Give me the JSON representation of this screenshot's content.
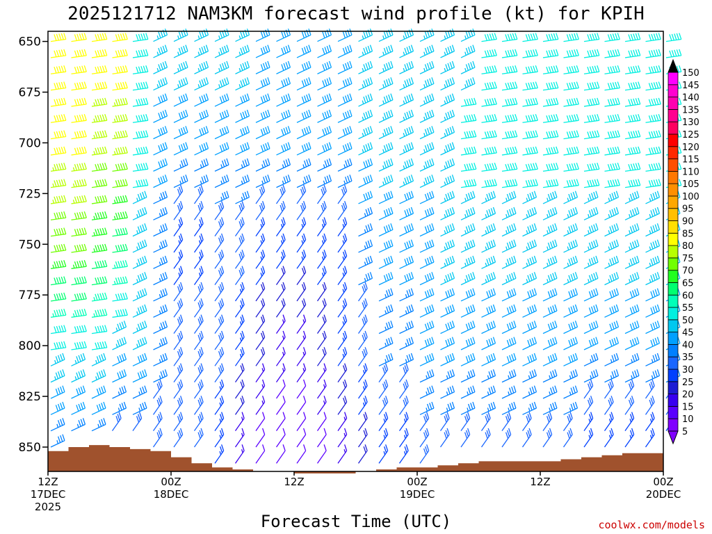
{
  "chart_data": {
    "type": "wind-barb-profile",
    "title": "2025121712 NAM3KM forecast wind profile (kt) for KPIH",
    "xlabel": "Forecast Time (UTC)",
    "ylabel": "",
    "y_ticks": [
      "650",
      "675",
      "700",
      "725",
      "750",
      "775",
      "800",
      "825",
      "850"
    ],
    "y_values": [
      650,
      675,
      700,
      725,
      750,
      775,
      800,
      825,
      850
    ],
    "ylim": [
      645,
      862
    ],
    "x_ticks": [
      {
        "hour": 0,
        "line1": "12Z",
        "line2": "17DEC",
        "line3": "2025"
      },
      {
        "hour": 12,
        "line1": "00Z",
        "line2": "18DEC",
        "line3": ""
      },
      {
        "hour": 24,
        "line1": "12Z",
        "line2": "",
        "line3": ""
      },
      {
        "hour": 36,
        "line1": "00Z",
        "line2": "19DEC",
        "line3": ""
      },
      {
        "hour": 48,
        "line1": "12Z",
        "line2": "",
        "line3": ""
      },
      {
        "hour": 60,
        "line1": "00Z",
        "line2": "20DEC",
        "line3": ""
      }
    ],
    "xlim": [
      0,
      60
    ],
    "colorbar": {
      "levels": [
        5,
        10,
        15,
        20,
        25,
        30,
        35,
        40,
        45,
        50,
        55,
        60,
        65,
        70,
        75,
        80,
        85,
        90,
        95,
        100,
        105,
        110,
        115,
        120,
        125,
        130,
        135,
        140,
        145,
        150
      ],
      "colors": [
        "#8000ff",
        "#5a00ff",
        "#3800f0",
        "#1d1dd4",
        "#0040ff",
        "#1a66ff",
        "#0080ff",
        "#00a0ff",
        "#00c8f0",
        "#00f0e0",
        "#00ffb8",
        "#00ff70",
        "#20ff20",
        "#70ff00",
        "#b8ff00",
        "#ffff00",
        "#ffe000",
        "#ffc000",
        "#ffa800",
        "#ff9000",
        "#ff7800",
        "#ff5000",
        "#ff2800",
        "#ff0000",
        "#ff0060",
        "#ff0090",
        "#ff00b0",
        "#ff00d0",
        "#ff00ff",
        "#ff40ff"
      ],
      "top_arrow": "#000000",
      "bottom_arrow": "#8000ff"
    },
    "terrain": {
      "color": "#a0522d",
      "hours": [
        0,
        2,
        4,
        6,
        8,
        10,
        12,
        14,
        16,
        18,
        20,
        22,
        24,
        26,
        28,
        30,
        32,
        34,
        36,
        38,
        40,
        42,
        44,
        46,
        48,
        50,
        52,
        54,
        56,
        58,
        60
      ],
      "pressure": [
        852,
        850,
        849,
        850,
        851,
        852,
        855,
        858,
        860,
        861,
        862,
        862,
        863,
        863,
        863,
        862,
        861,
        860,
        860,
        859,
        858,
        857,
        857,
        857,
        857,
        856,
        855,
        854,
        853,
        853,
        851
      ]
    },
    "wind_rows": [
      {
        "level": 650,
        "speeds_kt": [
          80,
          80,
          80,
          80,
          50,
          45,
          45,
          45,
          45,
          45,
          40,
          40,
          40,
          40,
          40,
          45,
          45,
          45,
          45,
          45,
          45,
          50,
          50,
          50,
          50,
          50,
          50,
          50,
          50,
          50,
          50
        ]
      },
      {
        "level": 700,
        "speeds_kt": [
          80,
          80,
          75,
          75,
          50,
          40,
          40,
          40,
          40,
          40,
          40,
          40,
          40,
          40,
          40,
          45,
          45,
          45,
          45,
          45,
          50,
          50,
          50,
          50,
          50,
          50,
          50,
          50,
          50,
          50,
          50
        ]
      },
      {
        "level": 750,
        "speeds_kt": [
          70,
          70,
          65,
          60,
          45,
          35,
          25,
          25,
          30,
          30,
          25,
          25,
          25,
          25,
          25,
          35,
          40,
          40,
          40,
          45,
          45,
          45,
          45,
          45,
          45,
          45,
          45,
          45,
          45,
          45,
          45
        ]
      },
      {
        "level": 800,
        "speeds_kt": [
          50,
          50,
          50,
          45,
          45,
          35,
          30,
          30,
          30,
          25,
          20,
          15,
          15,
          20,
          25,
          30,
          35,
          35,
          40,
          40,
          40,
          40,
          40,
          40,
          40,
          40,
          40,
          40,
          40,
          40,
          40
        ]
      },
      {
        "level": 850,
        "speeds_kt": [
          35,
          35,
          35,
          30,
          30,
          30,
          30,
          30,
          25,
          15,
          10,
          10,
          10,
          10,
          15,
          20,
          25,
          25,
          30,
          30,
          30,
          30,
          30,
          30,
          30,
          30,
          25,
          25,
          25,
          25,
          25
        ]
      }
    ]
  },
  "credit": "coolwx.com/models"
}
